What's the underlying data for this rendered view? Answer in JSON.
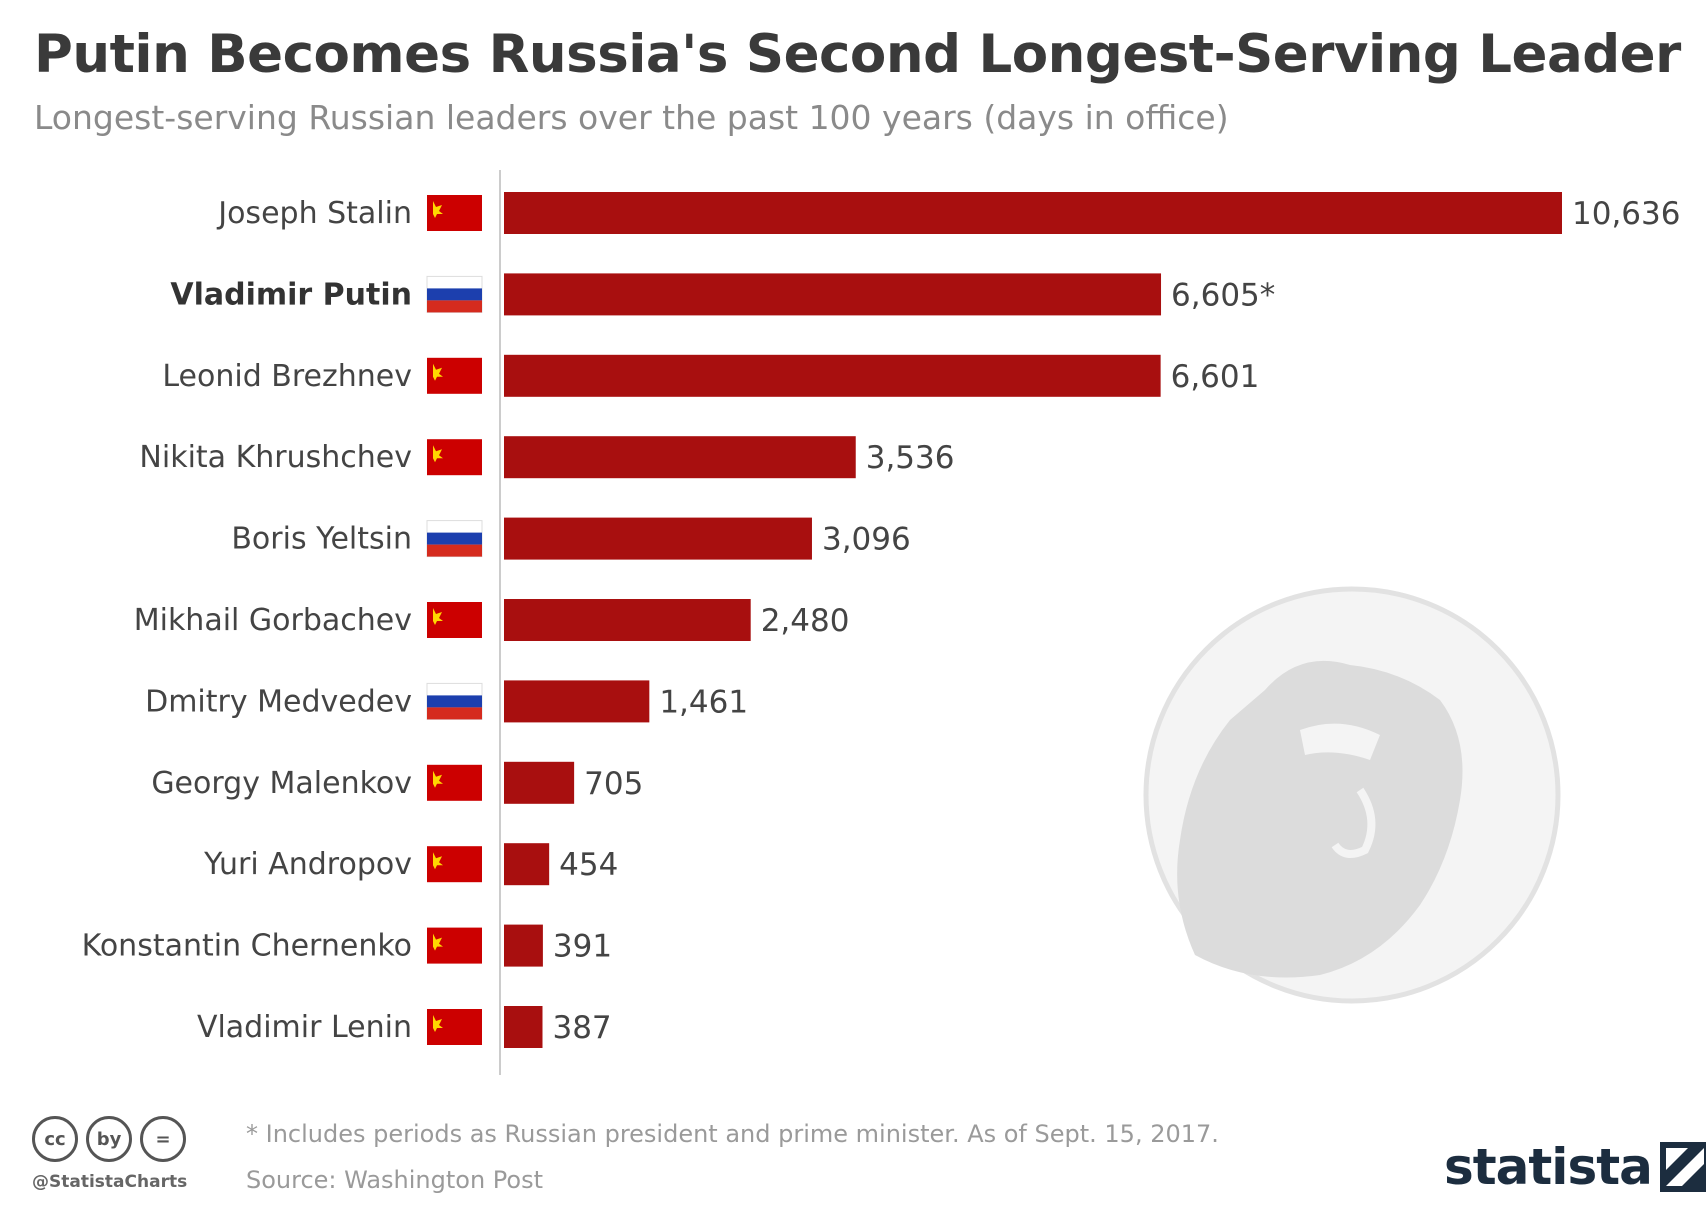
{
  "header": {
    "title": "Putin Becomes Russia's Second Longest-Serving Leader",
    "subtitle": "Longest-serving Russian leaders over the past 100 years (days in office)"
  },
  "chart_data": {
    "type": "bar",
    "orientation": "horizontal",
    "categories": [
      "Joseph Stalin",
      "Vladimir Putin",
      "Leonid Brezhnev",
      "Nikita Khrushchev",
      "Boris Yeltsin",
      "Mikhail Gorbachev",
      "Dmitry Medvedev",
      "Georgy Malenkov",
      "Yuri Andropov",
      "Konstantin Chernenko",
      "Vladimir Lenin"
    ],
    "values": [
      10636,
      6605,
      6601,
      3536,
      3096,
      2480,
      1461,
      705,
      454,
      391,
      387
    ],
    "value_labels": [
      "10,636",
      "6,605*",
      "6,601",
      "3,536",
      "3,096",
      "2,480",
      "1,461",
      "705",
      "454",
      "391",
      "387"
    ],
    "flags": [
      "ussr",
      "russia",
      "ussr",
      "ussr",
      "russia",
      "ussr",
      "russia",
      "ussr",
      "ussr",
      "ussr",
      "ussr"
    ],
    "highlighted": "Vladimir Putin",
    "bar_color": "#a80f0f",
    "xlim": [
      0,
      10636
    ],
    "grid": false
  },
  "footer": {
    "note": "* Includes periods as Russian president and prime minister. As of Sept. 15, 2017.",
    "source": "Source: Washington Post",
    "handle": "@StatistaCharts",
    "brand": "statista",
    "cc_icons": [
      "cc",
      "by",
      "="
    ]
  },
  "colors": {
    "ussr_red": "#cc0000",
    "ussr_yellow": "#ffd700",
    "russia_white": "#ffffff",
    "russia_blue": "#1c3fae",
    "russia_red": "#d52b1e",
    "watermark": "#dddddd"
  }
}
